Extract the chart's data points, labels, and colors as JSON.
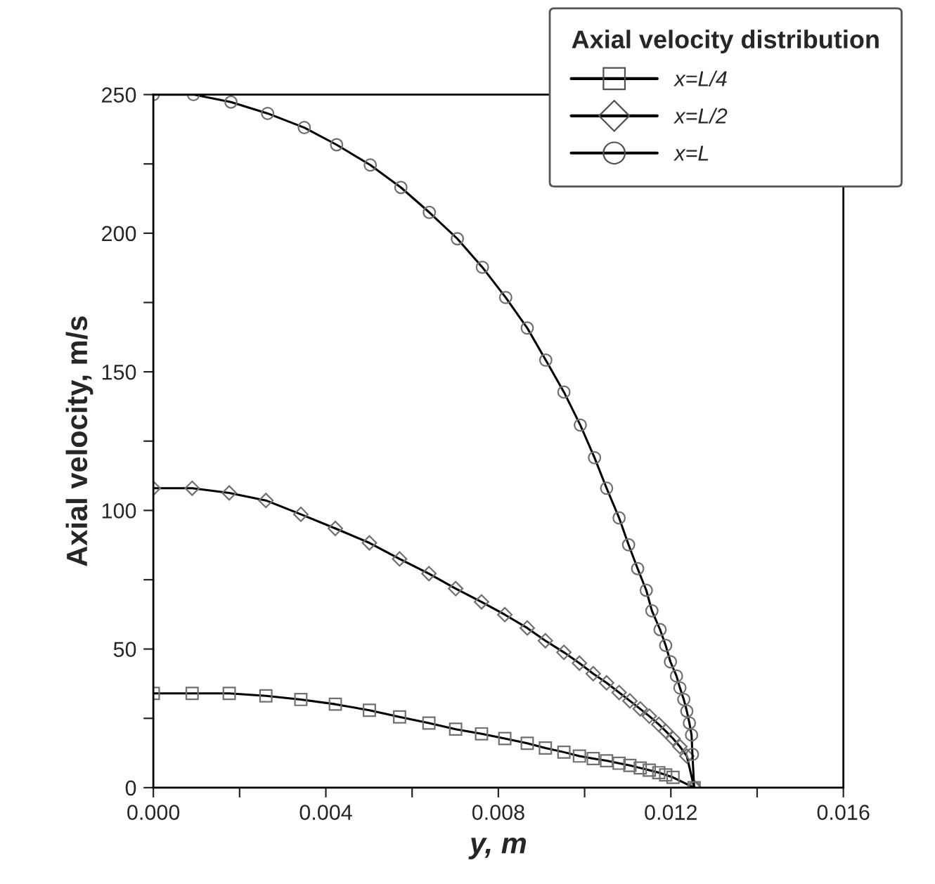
{
  "chart_data": {
    "type": "line",
    "xlabel": "y, m",
    "ylabel": "Axial velocity, m/s",
    "legend_title": "Axial velocity distribution",
    "legend": "top right",
    "grid": false,
    "xlim": [
      0,
      0.016
    ],
    "ylim": [
      0,
      250
    ],
    "xticks": [
      {
        "value": 0,
        "label": "0.000"
      },
      {
        "value": 0.002,
        "label": null
      },
      {
        "value": 0.004,
        "label": "0.004"
      },
      {
        "value": 0.006,
        "label": null
      },
      {
        "value": 0.008,
        "label": "0.008"
      },
      {
        "value": 0.01,
        "label": null
      },
      {
        "value": 0.012,
        "label": "0.012"
      },
      {
        "value": 0.014,
        "label": null
      },
      {
        "value": 0.016,
        "label": "0.016"
      }
    ],
    "yticks": [
      0,
      {
        "value": 25,
        "label": null
      },
      50,
      {
        "value": 75,
        "label": null
      },
      100,
      {
        "value": 125,
        "label": null
      },
      150,
      {
        "value": 175,
        "label": null
      },
      200,
      {
        "value": 225,
        "label": null
      },
      250
    ],
    "series": [
      {
        "name": "x=L/4",
        "color": "#000000",
        "marker": "square",
        "x": [
          0,
          0.0009,
          0.00176,
          0.00261,
          0.00342,
          0.00422,
          0.00501,
          0.00571,
          0.00639,
          0.00701,
          0.00761,
          0.00815,
          0.00867,
          0.00909,
          0.00952,
          0.00988,
          0.0102,
          0.01051,
          0.0108,
          0.01105,
          0.01129,
          0.0115,
          0.01172,
          0.01188,
          0.01205,
          0.01254
        ],
        "values": [
          34,
          34,
          34,
          33.1,
          31.8,
          30.1,
          27.9,
          25.5,
          23.3,
          21.1,
          19.4,
          17.7,
          16,
          14.3,
          12.8,
          11.4,
          10.5,
          9.7,
          8.8,
          8,
          7.1,
          6.3,
          5.4,
          4.6,
          3.7,
          0
        ]
      },
      {
        "name": "x=L/2",
        "color": "#000000",
        "marker": "diamond",
        "x": [
          0,
          0.0009,
          0.00176,
          0.00261,
          0.00342,
          0.00422,
          0.00501,
          0.00571,
          0.00639,
          0.00701,
          0.00761,
          0.00815,
          0.00867,
          0.00909,
          0.00952,
          0.00988,
          0.0102,
          0.01051,
          0.0108,
          0.01105,
          0.01129,
          0.0115,
          0.01172,
          0.01188,
          0.01205,
          0.01221,
          0.01237,
          0.01254
        ],
        "values": [
          108,
          108,
          106.3,
          103.6,
          98.6,
          93.5,
          88.3,
          82.5,
          77.2,
          71.8,
          67,
          62.4,
          57.6,
          53,
          48.8,
          44.9,
          41.1,
          37.8,
          34.3,
          31.3,
          28.4,
          25.8,
          22.8,
          20.4,
          17.7,
          14.8,
          11.4,
          0
        ]
      },
      {
        "name": "x=L",
        "color": "#000000",
        "marker": "circle",
        "x": [
          0,
          0.00093,
          0.0018,
          0.00265,
          0.0035,
          0.00425,
          0.00503,
          0.00574,
          0.0064,
          0.00705,
          0.00763,
          0.00817,
          0.00867,
          0.0091,
          0.00952,
          0.0099,
          0.01023,
          0.01051,
          0.0108,
          0.01102,
          0.01123,
          0.01143,
          0.01156,
          0.01175,
          0.01188,
          0.01199,
          0.01213,
          0.01221,
          0.0123,
          0.01237,
          0.01243,
          0.01248,
          0.0125,
          0.01254
        ],
        "values": [
          250,
          250,
          247.3,
          243.2,
          238.1,
          231.9,
          224.6,
          216.5,
          207.5,
          198,
          187.7,
          176.8,
          165.8,
          154.2,
          142.7,
          130.8,
          119,
          108,
          97.3,
          87.6,
          79,
          71.2,
          63.8,
          57,
          51.3,
          45.4,
          40.3,
          36,
          31.8,
          27.6,
          23.3,
          19,
          12,
          0
        ]
      }
    ]
  }
}
